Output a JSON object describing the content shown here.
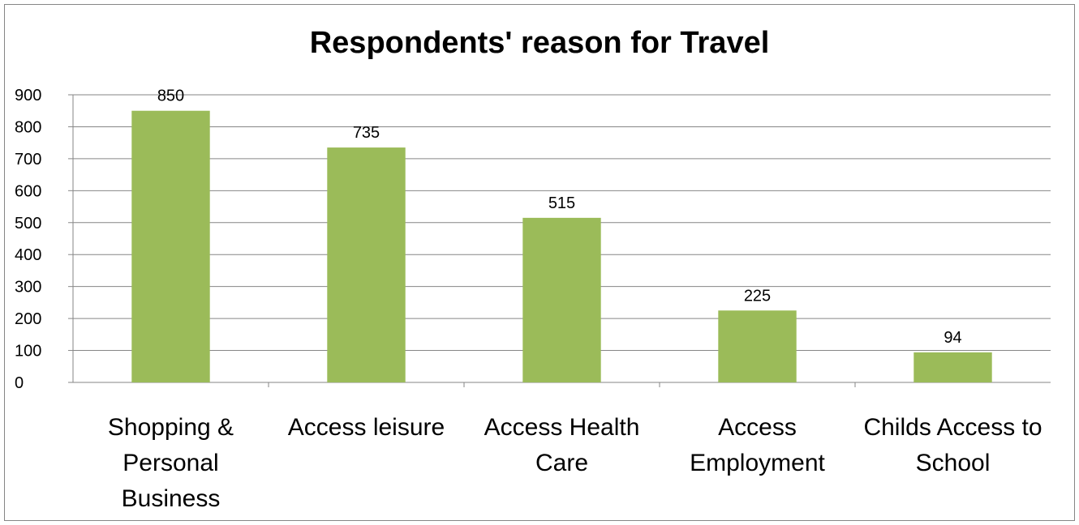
{
  "chart_data": {
    "type": "bar",
    "title": "Respondents' reason for Travel",
    "categories": [
      [
        "Shopping &",
        "Personal",
        "Business"
      ],
      [
        "Access leisure"
      ],
      [
        "Access Health",
        "Care"
      ],
      [
        "Access",
        "Employment"
      ],
      [
        "Childs Access to",
        "School"
      ]
    ],
    "values": [
      850,
      735,
      515,
      225,
      94
    ],
    "data_labels": [
      "850",
      "735",
      "515",
      "225",
      "94"
    ],
    "y_ticks": [
      "0",
      "100",
      "200",
      "300",
      "400",
      "500",
      "600",
      "700",
      "800",
      "900"
    ],
    "ylim": [
      0,
      900
    ],
    "grid": true,
    "bar_color": "#9BBB59",
    "gridline_color": "#868686",
    "xlabel": "",
    "ylabel": ""
  }
}
